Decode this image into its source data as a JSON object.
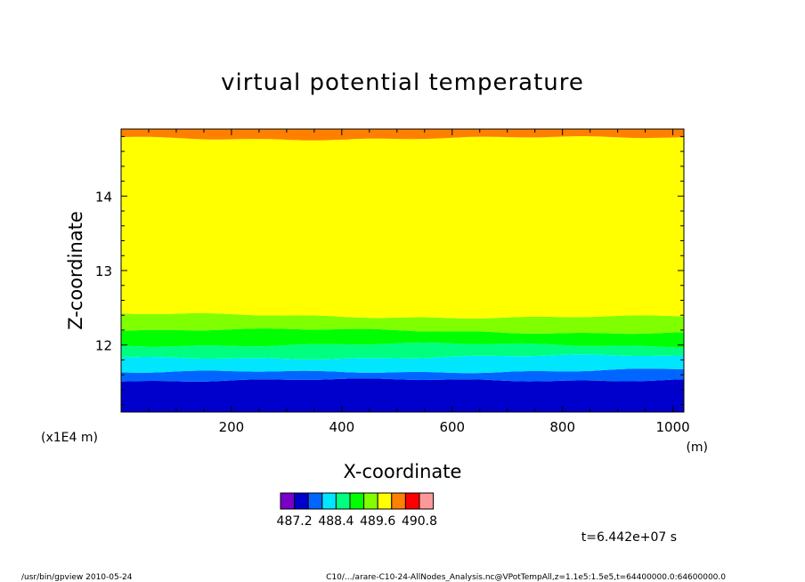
{
  "chart_data": {
    "type": "heatmap",
    "title": "virtual potential temperature",
    "xlabel": "X-coordinate",
    "ylabel": "Z-coordinate",
    "x_unit": "(m)",
    "y_unit": "(x1E4 m)",
    "xlim": [
      0,
      1020
    ],
    "ylim": [
      11.1,
      14.9
    ],
    "x_ticks": [
      200,
      400,
      600,
      800,
      1000
    ],
    "y_ticks": [
      12,
      13,
      14
    ],
    "x_tick_labels": [
      "200",
      "400",
      "600",
      "800",
      "1000"
    ],
    "y_tick_labels": [
      "12",
      "13",
      "14"
    ],
    "grid": false,
    "colorbar": {
      "levels": [
        486.8,
        487.2,
        487.6,
        488.0,
        488.4,
        488.8,
        489.2,
        489.6,
        490.0,
        490.4,
        490.8,
        491.2
      ],
      "labels": [
        "487.2",
        "488.4",
        "489.6",
        "490.8"
      ],
      "label_values": [
        487.2,
        488.4,
        489.6,
        490.8
      ],
      "colors": [
        "#7a00c8",
        "#0000cc",
        "#0066ff",
        "#00e6ff",
        "#00ff80",
        "#00ff00",
        "#80ff00",
        "#ffff00",
        "#ff8000",
        "#ff0000",
        "#ff9999"
      ]
    },
    "bands": [
      {
        "from_z": 11.1,
        "to_z": 11.55,
        "color": "#0000cc"
      },
      {
        "from_z": 11.55,
        "to_z": 11.65,
        "color": "#0066ff"
      },
      {
        "from_z": 11.65,
        "to_z": 11.82,
        "color": "#00e6ff"
      },
      {
        "from_z": 11.82,
        "to_z": 11.98,
        "color": "#00ff80"
      },
      {
        "from_z": 11.98,
        "to_z": 12.18,
        "color": "#00ff00"
      },
      {
        "from_z": 12.18,
        "to_z": 12.4,
        "color": "#80ff00"
      },
      {
        "from_z": 12.4,
        "to_z": 14.8,
        "color": "#ffff00"
      },
      {
        "from_z": 14.8,
        "to_z": 14.9,
        "color": "#ff8000"
      }
    ],
    "time_label": "t=6.442e+07 s"
  },
  "footer": {
    "left": "/usr/bin/gpview   2010-05-24",
    "right": "C10/.../arare-C10-24-AllNodes_Analysis.nc@VPotTempAll,z=1.1e5:1.5e5,t=64400000.0:64600000.0"
  }
}
